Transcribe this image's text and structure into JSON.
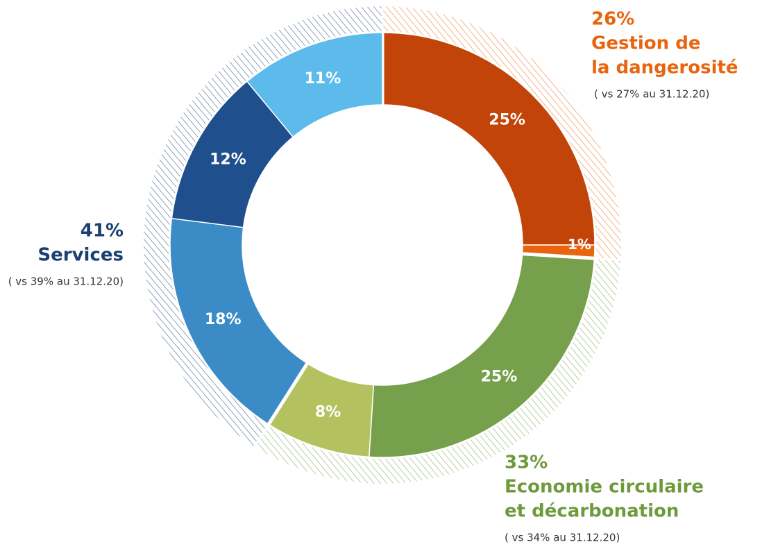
{
  "chart_data": {
    "type": "donut",
    "series": [
      {
        "name_lines": [
          "Gestion de",
          "la dangerosité"
        ],
        "value": 26,
        "value_label": "26%",
        "note": "( vs 27% au 31.12.20)",
        "color": "#e8650f",
        "slices": {
          "values": [
            25,
            1
          ],
          "value_labels": [
            "25%",
            "1%"
          ],
          "colors": [
            "#c24408",
            "#ea6410"
          ]
        }
      },
      {
        "name_lines": [
          "Economie circulaire",
          "et décarbonation"
        ],
        "value": 33,
        "value_label": "33%",
        "note": "( vs 34% au 31.12.20)",
        "color": "#6f9a3c",
        "slices": {
          "values": [
            25,
            8
          ],
          "value_labels": [
            "25%",
            "8%"
          ],
          "colors": [
            "#76a04c",
            "#b3c25e"
          ]
        }
      },
      {
        "name_lines": [
          "Services"
        ],
        "value": 41,
        "value_label": "41%",
        "note": "( vs 39% au 31.12.20)",
        "color": "#1b3f73",
        "slices": {
          "values": [
            18,
            12,
            11
          ],
          "value_labels": [
            "18%",
            "12%",
            "11%"
          ],
          "colors": [
            "#3b8cc6",
            "#1f4f8c",
            "#5cbbea"
          ]
        }
      }
    ]
  }
}
